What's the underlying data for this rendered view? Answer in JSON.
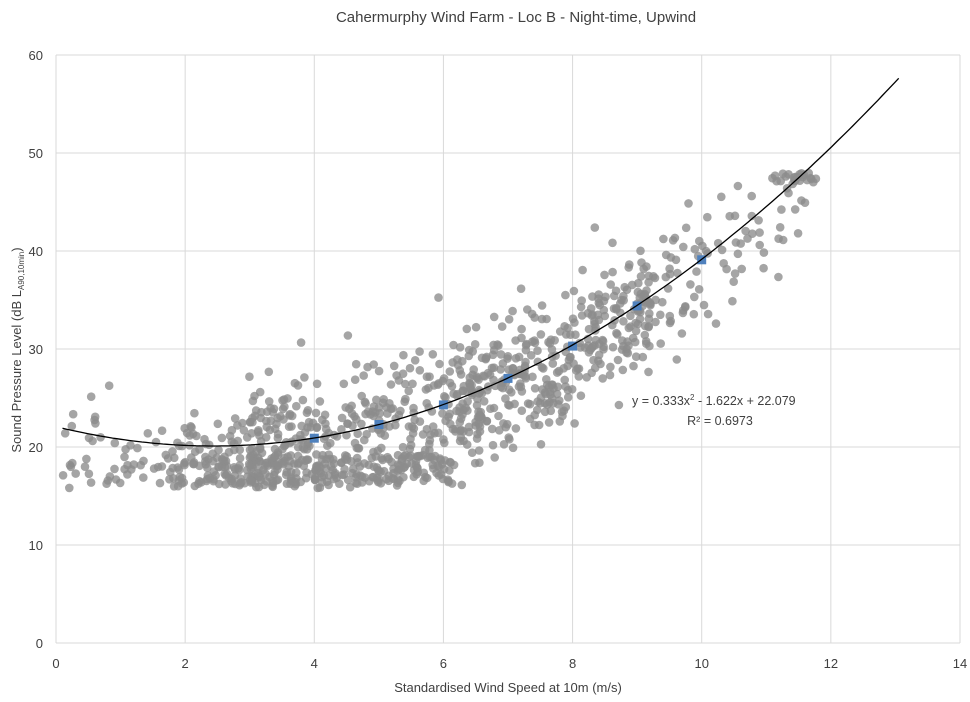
{
  "chart_data": {
    "type": "scatter",
    "title": "Cahermurphy Wind Farm - Loc B - Night-time, Upwind",
    "xlabel": "Standardised Wind Speed at 10m (m/s)",
    "ylabel": "Sound Pressure Level (dB L",
    "ylabel_sub": "A90,10min",
    "ylabel_close": ")",
    "xlim": [
      0,
      14
    ],
    "ylim": [
      0,
      60
    ],
    "x_ticks": [
      "0",
      "2",
      "4",
      "6",
      "8",
      "10",
      "12",
      "14"
    ],
    "y_ticks": [
      "0",
      "10",
      "20",
      "30",
      "40",
      "50",
      "60"
    ],
    "grid": true,
    "trendline": {
      "type": "polynomial",
      "order": 2,
      "coefficients": {
        "a": 0.333,
        "b": -1.622,
        "c": 22.079
      },
      "x_range": [
        0.1,
        13.05
      ],
      "equation_prefix": "y = 0.333x",
      "equation_sup": "2",
      "equation_suffix": " - 1.622x + 22.079",
      "r2_text": "R² = 0.6973"
    },
    "series": [
      {
        "role": "measured",
        "color": "#8c8c8c",
        "point_count": 1150,
        "distribution_note": "dense cloud of grey points from x≈0.1 to x≈11.8; spread roughly ±4–6 dB around the fitted curve"
      },
      {
        "role": "binned-average",
        "color": "#4f81bd",
        "x": [
          4,
          5,
          6,
          7,
          8,
          9,
          10
        ],
        "y": [
          20.9,
          22.3,
          24.3,
          27.0,
          30.3,
          34.4,
          39.1
        ]
      }
    ]
  }
}
